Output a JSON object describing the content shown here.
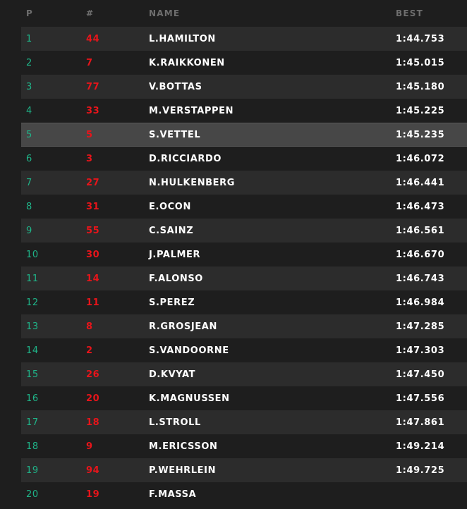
{
  "table": {
    "columns": [
      "P",
      "#",
      "NAME",
      "BEST"
    ],
    "rows": [
      [
        "1",
        "44",
        "L.HAMILTON",
        "1:44.753"
      ],
      [
        "2",
        "7",
        "K.RAIKKONEN",
        "1:45.015"
      ],
      [
        "3",
        "77",
        "V.BOTTAS",
        "1:45.180"
      ],
      [
        "4",
        "33",
        "M.VERSTAPPEN",
        "1:45.225"
      ],
      [
        "5",
        "5",
        "S.VETTEL",
        "1:45.235"
      ],
      [
        "6",
        "3",
        "D.RICCIARDO",
        "1:46.072"
      ],
      [
        "7",
        "27",
        "N.HULKENBERG",
        "1:46.441"
      ],
      [
        "8",
        "31",
        "E.OCON",
        "1:46.473"
      ],
      [
        "9",
        "55",
        "C.SAINZ",
        "1:46.561"
      ],
      [
        "10",
        "30",
        "J.PALMER",
        "1:46.670"
      ],
      [
        "11",
        "14",
        "F.ALONSO",
        "1:46.743"
      ],
      [
        "12",
        "11",
        "S.PEREZ",
        "1:46.984"
      ],
      [
        "13",
        "8",
        "R.GROSJEAN",
        "1:47.285"
      ],
      [
        "14",
        "2",
        "S.VANDOORNE",
        "1:47.303"
      ],
      [
        "15",
        "26",
        "D.KVYAT",
        "1:47.450"
      ],
      [
        "16",
        "20",
        "K.MAGNUSSEN",
        "1:47.556"
      ],
      [
        "17",
        "18",
        "L.STROLL",
        "1:47.861"
      ],
      [
        "18",
        "9",
        "M.ERICSSON",
        "1:49.214"
      ],
      [
        "19",
        "94",
        "P.WEHRLEIN",
        "1:49.725"
      ],
      [
        "20",
        "19",
        "F.MASSA",
        null
      ]
    ]
  }
}
